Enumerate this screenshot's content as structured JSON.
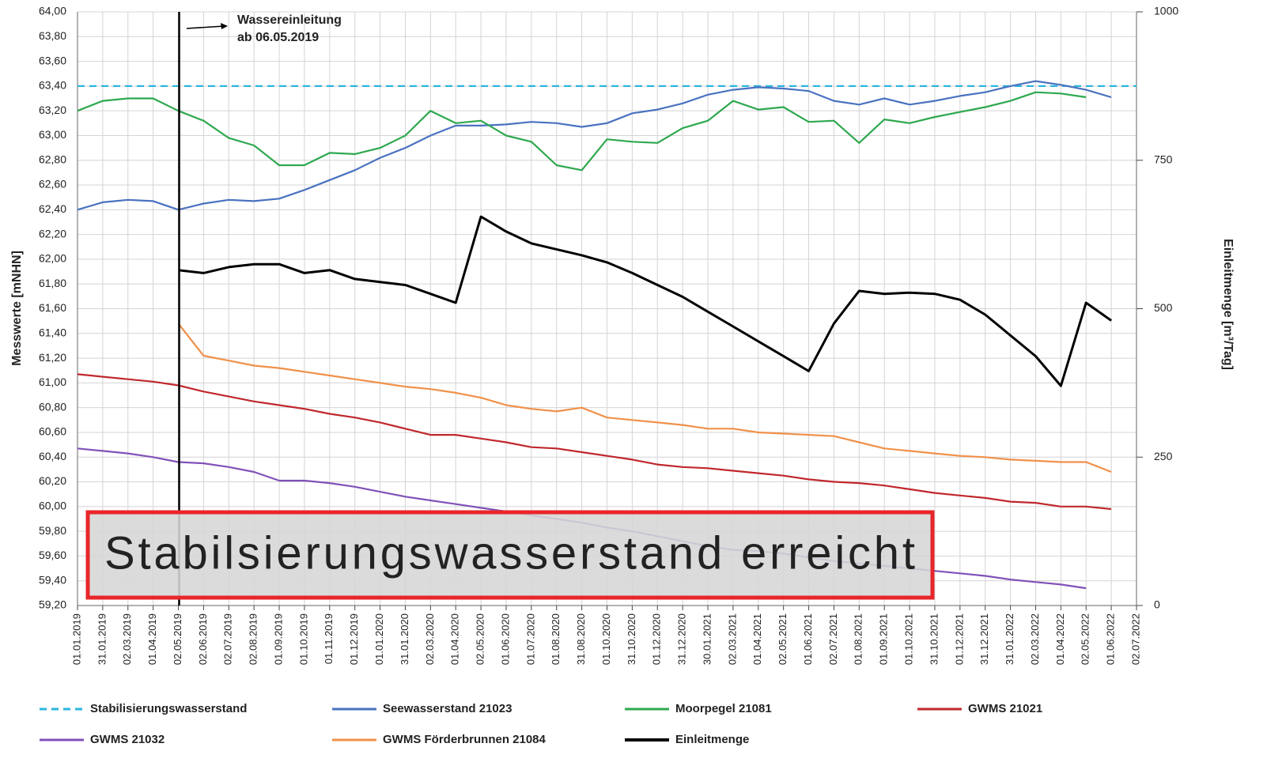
{
  "chart_data": {
    "type": "line",
    "ylabel": "Messwerte [mNHN]",
    "y2label": "Einleitmenge [m³/Tag]",
    "annotations": [
      "Wassereinleitung",
      "ab 06.05.2019"
    ],
    "event_x": "02.05.2019",
    "callout": "Stabilsierungswasserstand erreicht",
    "grid": true,
    "categories": [
      "01.01.2019",
      "31.01.2019",
      "02.03.2019",
      "01.04.2019",
      "02.05.2019",
      "02.06.2019",
      "02.07.2019",
      "02.08.2019",
      "01.09.2019",
      "01.10.2019",
      "01.11.2019",
      "01.12.2019",
      "01.01.2020",
      "31.01.2020",
      "02.03.2020",
      "01.04.2020",
      "02.05.2020",
      "01.06.2020",
      "01.07.2020",
      "01.08.2020",
      "31.08.2020",
      "01.10.2020",
      "31.10.2020",
      "01.12.2020",
      "31.12.2020",
      "30.01.2021",
      "02.03.2021",
      "01.04.2021",
      "02.05.2021",
      "01.06.2021",
      "02.07.2021",
      "01.08.2021",
      "01.09.2021",
      "01.10.2021",
      "31.10.2021",
      "01.12.2021",
      "31.12.2021",
      "31.01.2022",
      "02.03.2022",
      "01.04.2022",
      "02.05.2022",
      "01.06.2022",
      "02.07.2022"
    ],
    "ylim": [
      59.2,
      64
    ],
    "yticks": [
      {
        "value": 59.2,
        "label": "59,20"
      },
      {
        "value": 59.4,
        "label": "59,40"
      },
      {
        "value": 59.6,
        "label": "59,60"
      },
      {
        "value": 59.8,
        "label": "59,80"
      },
      {
        "value": 60,
        "label": "60,00"
      },
      {
        "value": 60.2,
        "label": "60,20"
      },
      {
        "value": 60.4,
        "label": "60,40"
      },
      {
        "value": 60.6,
        "label": "60,60"
      },
      {
        "value": 60.8,
        "label": "60,80"
      },
      {
        "value": 61,
        "label": "61,00"
      },
      {
        "value": 61.2,
        "label": "61,20"
      },
      {
        "value": 61.4,
        "label": "61,40"
      },
      {
        "value": 61.6,
        "label": "61,60"
      },
      {
        "value": 61.8,
        "label": "61,80"
      },
      {
        "value": 62,
        "label": "62,00"
      },
      {
        "value": 62.2,
        "label": "62,20"
      },
      {
        "value": 62.4,
        "label": "62,40"
      },
      {
        "value": 62.6,
        "label": "62,60"
      },
      {
        "value": 62.8,
        "label": "62,80"
      },
      {
        "value": 63,
        "label": "63,00"
      },
      {
        "value": 63.2,
        "label": "63,20"
      },
      {
        "value": 63.4,
        "label": "63,40"
      },
      {
        "value": 63.6,
        "label": "63,60"
      },
      {
        "value": 63.8,
        "label": "63,80"
      },
      {
        "value": 64,
        "label": "64,00"
      }
    ],
    "y2lim": [
      0,
      1000
    ],
    "y2ticks": [
      0,
      250,
      500,
      750,
      1000
    ],
    "series": [
      {
        "name": "Stabilisierungswasserstand",
        "color": "#2bb5dc",
        "style": "dashed",
        "values": [
          63.4,
          63.4,
          63.4,
          63.4,
          63.4,
          63.4,
          63.4,
          63.4,
          63.4,
          63.4,
          63.4,
          63.4,
          63.4,
          63.4,
          63.4,
          63.4,
          63.4,
          63.4,
          63.4,
          63.4,
          63.4,
          63.4,
          63.4,
          63.4,
          63.4,
          63.4,
          63.4,
          63.4,
          63.4,
          63.4,
          63.4,
          63.4,
          63.4,
          63.4,
          63.4,
          63.4,
          63.4,
          63.4,
          63.4,
          63.4,
          63.4,
          63.4,
          63.4
        ]
      },
      {
        "name": "Seewasserstand 21023",
        "color": "#4a72c0",
        "values": [
          62.4,
          62.46,
          62.48,
          62.47,
          62.4,
          62.45,
          62.48,
          62.47,
          62.49,
          62.56,
          62.64,
          62.72,
          62.82,
          62.9,
          63.0,
          63.08,
          63.08,
          63.09,
          63.11,
          63.1,
          63.07,
          63.1,
          63.18,
          63.21,
          63.26,
          63.33,
          63.37,
          63.39,
          63.38,
          63.36,
          63.28,
          63.25,
          63.3,
          63.25,
          63.28,
          63.32,
          63.35,
          63.4,
          63.44,
          63.41,
          63.37,
          63.31,
          null
        ]
      },
      {
        "name": "Moorpegel 21081",
        "color": "#2ea84f",
        "values": [
          63.2,
          63.28,
          63.3,
          63.3,
          63.2,
          63.12,
          62.98,
          62.92,
          62.76,
          62.76,
          62.86,
          62.85,
          62.9,
          63.0,
          63.2,
          63.1,
          63.12,
          63.0,
          62.95,
          62.76,
          62.72,
          62.97,
          62.95,
          62.94,
          63.06,
          63.12,
          63.28,
          63.21,
          63.23,
          63.11,
          63.12,
          62.94,
          63.13,
          63.1,
          63.15,
          63.19,
          63.23,
          63.28,
          63.35,
          63.34,
          63.31,
          null,
          null
        ]
      },
      {
        "name": "GWMS 21021",
        "color": "#c0282c",
        "values": [
          61.07,
          61.05,
          61.03,
          61.01,
          60.98,
          60.93,
          60.89,
          60.85,
          60.82,
          60.79,
          60.75,
          60.72,
          60.68,
          60.63,
          60.58,
          60.58,
          60.55,
          60.52,
          60.48,
          60.47,
          60.44,
          60.41,
          60.38,
          60.34,
          60.32,
          60.31,
          60.29,
          60.27,
          60.25,
          60.22,
          60.2,
          60.19,
          60.17,
          60.14,
          60.11,
          60.09,
          60.07,
          60.04,
          60.03,
          60.0,
          60.0,
          59.98,
          null
        ]
      },
      {
        "name": "GWMS 21032",
        "color": "#8052b8",
        "values": [
          60.47,
          60.45,
          60.43,
          60.4,
          60.36,
          60.35,
          60.32,
          60.28,
          60.21,
          60.21,
          60.19,
          60.16,
          60.12,
          60.08,
          60.05,
          60.02,
          59.99,
          59.96,
          59.93,
          59.9,
          59.87,
          59.83,
          59.8,
          59.76,
          59.72,
          59.68,
          59.65,
          59.64,
          59.62,
          59.59,
          59.56,
          59.54,
          59.52,
          59.5,
          59.48,
          59.46,
          59.44,
          59.41,
          59.39,
          59.37,
          59.34,
          null,
          null
        ]
      },
      {
        "name": "GWMS Förderbrunnen 21084",
        "color": "#f0914a",
        "values": [
          null,
          null,
          null,
          null,
          61.48,
          61.22,
          61.18,
          61.14,
          61.12,
          61.09,
          61.06,
          61.03,
          61.0,
          60.97,
          60.95,
          60.92,
          60.88,
          60.82,
          60.79,
          60.77,
          60.8,
          60.72,
          60.7,
          60.68,
          60.66,
          60.63,
          60.63,
          60.6,
          60.59,
          60.58,
          60.57,
          60.52,
          60.47,
          60.45,
          60.43,
          60.41,
          60.4,
          60.38,
          60.37,
          60.36,
          60.36,
          60.28,
          null
        ]
      },
      {
        "name": "Einleitmenge",
        "color": "#000000",
        "axis": "y2",
        "values": [
          null,
          null,
          null,
          null,
          565,
          560,
          570,
          575,
          575,
          560,
          565,
          550,
          545,
          540,
          525,
          510,
          655,
          630,
          610,
          600,
          590,
          578,
          560,
          540,
          520,
          495,
          470,
          445,
          420,
          395,
          475,
          530,
          525,
          527,
          525,
          515,
          490,
          455,
          420,
          370,
          510,
          480,
          null
        ]
      }
    ]
  }
}
